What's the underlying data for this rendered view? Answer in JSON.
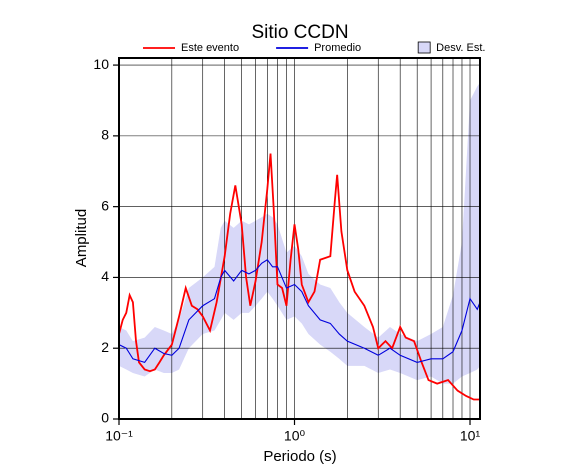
{
  "chart_data": {
    "type": "line",
    "title": "Sitio CCDN",
    "xlabel": "Periodo (s)",
    "ylabel": "Amplitud",
    "xscale": "log",
    "xlim": [
      0.1,
      11.4
    ],
    "ylim": [
      0,
      10.2
    ],
    "xticks": [
      {
        "value": 0.1,
        "label": "10⁻¹"
      },
      {
        "value": 1,
        "label": "10⁰"
      },
      {
        "value": 10,
        "label": "10¹"
      }
    ],
    "xgrid": [
      0.2,
      0.3,
      0.4,
      0.5,
      0.6,
      0.7,
      0.8,
      0.9,
      2,
      3,
      4,
      5,
      6,
      7,
      8,
      9
    ],
    "yticks": [
      0,
      2,
      4,
      6,
      8,
      10
    ],
    "grid": true,
    "series": [
      {
        "name": "Este evento",
        "color": "#ff0000",
        "x": [
          0.1,
          0.105,
          0.11,
          0.115,
          0.12,
          0.125,
          0.13,
          0.14,
          0.15,
          0.16,
          0.17,
          0.18,
          0.2,
          0.22,
          0.24,
          0.26,
          0.28,
          0.3,
          0.33,
          0.36,
          0.4,
          0.43,
          0.46,
          0.5,
          0.53,
          0.56,
          0.6,
          0.65,
          0.7,
          0.73,
          0.76,
          0.8,
          0.85,
          0.9,
          0.95,
          1.0,
          1.05,
          1.1,
          1.2,
          1.3,
          1.4,
          1.6,
          1.7,
          1.75,
          1.85,
          2.0,
          2.2,
          2.5,
          2.8,
          3.0,
          3.3,
          3.6,
          4.0,
          4.3,
          4.8,
          5.3,
          5.8,
          6.5,
          7.5,
          8.5,
          9.5,
          10.5,
          11.4
        ],
        "values": [
          2.4,
          2.8,
          3.0,
          3.5,
          3.3,
          2.2,
          1.6,
          1.4,
          1.35,
          1.4,
          1.6,
          1.8,
          2.1,
          2.9,
          3.7,
          3.2,
          3.1,
          2.9,
          2.5,
          3.3,
          4.6,
          5.8,
          6.6,
          5.5,
          4.0,
          3.2,
          3.9,
          5.0,
          6.5,
          7.5,
          6.0,
          3.8,
          3.7,
          3.2,
          4.5,
          5.5,
          4.8,
          3.8,
          3.3,
          3.6,
          4.5,
          4.6,
          6.2,
          6.9,
          5.3,
          4.2,
          3.6,
          3.2,
          2.6,
          2.0,
          2.2,
          2.0,
          2.6,
          2.3,
          2.2,
          1.6,
          1.1,
          1.0,
          1.1,
          0.8,
          0.65,
          0.55,
          0.55
        ]
      },
      {
        "name": "Promedio",
        "color": "#0000dd",
        "x": [
          0.1,
          0.11,
          0.12,
          0.14,
          0.16,
          0.18,
          0.2,
          0.22,
          0.25,
          0.3,
          0.35,
          0.38,
          0.4,
          0.45,
          0.5,
          0.55,
          0.6,
          0.65,
          0.7,
          0.75,
          0.8,
          0.9,
          1.0,
          1.1,
          1.2,
          1.4,
          1.6,
          1.8,
          2.0,
          2.5,
          3.0,
          3.5,
          4.0,
          5.0,
          6.0,
          7.0,
          8.0,
          9.0,
          10.0,
          11.0,
          11.4
        ],
        "values": [
          2.1,
          2.0,
          1.7,
          1.6,
          2.0,
          1.85,
          1.8,
          2.0,
          2.8,
          3.2,
          3.4,
          4.0,
          4.2,
          3.9,
          4.2,
          4.1,
          4.2,
          4.4,
          4.5,
          4.3,
          4.3,
          3.7,
          3.8,
          3.6,
          3.2,
          2.8,
          2.7,
          2.4,
          2.2,
          2.0,
          1.8,
          2.0,
          1.8,
          1.6,
          1.7,
          1.7,
          1.9,
          2.5,
          3.4,
          3.1,
          3.3
        ]
      },
      {
        "name": "Desv. Est.",
        "color": "#d8d8f8",
        "x": [
          0.1,
          0.11,
          0.12,
          0.14,
          0.16,
          0.18,
          0.2,
          0.22,
          0.25,
          0.3,
          0.35,
          0.38,
          0.4,
          0.45,
          0.5,
          0.55,
          0.6,
          0.65,
          0.7,
          0.75,
          0.8,
          0.9,
          1.0,
          1.1,
          1.2,
          1.4,
          1.6,
          1.8,
          2.0,
          2.5,
          3.0,
          3.5,
          4.0,
          5.0,
          6.0,
          7.0,
          8.0,
          9.0,
          10.0,
          11.0,
          11.4
        ],
        "lower": [
          1.5,
          1.4,
          1.3,
          1.2,
          1.4,
          1.3,
          1.3,
          1.4,
          2.0,
          2.4,
          2.5,
          2.8,
          3.0,
          2.8,
          3.0,
          3.0,
          3.2,
          3.4,
          3.6,
          3.4,
          3.2,
          2.8,
          2.9,
          2.7,
          2.4,
          2.1,
          1.9,
          1.7,
          1.5,
          1.5,
          1.3,
          1.4,
          1.3,
          1.1,
          1.2,
          1.0,
          1.0,
          1.2,
          1.3,
          1.4,
          1.5
        ],
        "upper": [
          2.6,
          2.5,
          2.2,
          2.3,
          2.6,
          2.5,
          2.4,
          2.8,
          3.7,
          4.0,
          4.3,
          5.4,
          5.6,
          5.4,
          5.6,
          5.5,
          5.6,
          5.7,
          5.8,
          5.7,
          5.5,
          4.7,
          4.9,
          4.6,
          4.1,
          3.8,
          3.7,
          3.3,
          3.0,
          2.6,
          2.3,
          2.6,
          2.4,
          2.2,
          2.4,
          2.6,
          3.5,
          5.0,
          9.0,
          9.4,
          9.5
        ]
      }
    ]
  }
}
